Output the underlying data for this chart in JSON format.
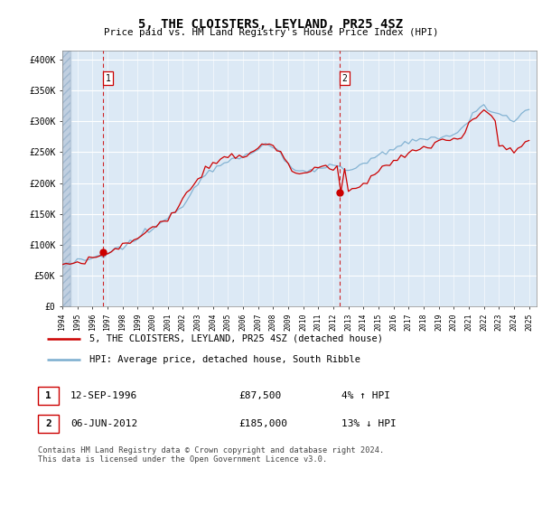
{
  "title": "5, THE CLOISTERS, LEYLAND, PR25 4SZ",
  "subtitle": "Price paid vs. HM Land Registry's House Price Index (HPI)",
  "ylabel_ticks": [
    "£0",
    "£50K",
    "£100K",
    "£150K",
    "£200K",
    "£250K",
    "£300K",
    "£350K",
    "£400K"
  ],
  "ytick_values": [
    0,
    50000,
    100000,
    150000,
    200000,
    250000,
    300000,
    350000,
    400000
  ],
  "ylim": [
    0,
    415000
  ],
  "xlim_start": 1994.0,
  "xlim_end": 2025.5,
  "sale1_date": 1996.71,
  "sale1_price": 87500,
  "sale2_date": 2012.42,
  "sale2_price": 185000,
  "red_line_color": "#cc0000",
  "blue_line_color": "#7aadcf",
  "dashed_color": "#cc0000",
  "sale_dot_color": "#cc0000",
  "legend_label_red": "5, THE CLOISTERS, LEYLAND, PR25 4SZ (detached house)",
  "legend_label_blue": "HPI: Average price, detached house, South Ribble",
  "table_row1": [
    "1",
    "12-SEP-1996",
    "£87,500",
    "4% ↑ HPI"
  ],
  "table_row2": [
    "2",
    "06-JUN-2012",
    "£185,000",
    "13% ↓ HPI"
  ],
  "footnote": "Contains HM Land Registry data © Crown copyright and database right 2024.\nThis data is licensed under the Open Government Licence v3.0.",
  "plot_bg_color": "#dce9f5",
  "hatch_color": "#c0cfe0",
  "years_hpi": [
    1994.0,
    1994.25,
    1994.5,
    1994.75,
    1995.0,
    1995.25,
    1995.5,
    1995.75,
    1996.0,
    1996.25,
    1996.5,
    1996.75,
    1997.0,
    1997.25,
    1997.5,
    1997.75,
    1998.0,
    1998.25,
    1998.5,
    1998.75,
    1999.0,
    1999.25,
    1999.5,
    1999.75,
    2000.0,
    2000.25,
    2000.5,
    2000.75,
    2001.0,
    2001.25,
    2001.5,
    2001.75,
    2002.0,
    2002.25,
    2002.5,
    2002.75,
    2003.0,
    2003.25,
    2003.5,
    2003.75,
    2004.0,
    2004.25,
    2004.5,
    2004.75,
    2005.0,
    2005.25,
    2005.5,
    2005.75,
    2006.0,
    2006.25,
    2006.5,
    2006.75,
    2007.0,
    2007.25,
    2007.5,
    2007.75,
    2008.0,
    2008.25,
    2008.5,
    2008.75,
    2009.0,
    2009.25,
    2009.5,
    2009.75,
    2010.0,
    2010.25,
    2010.5,
    2010.75,
    2011.0,
    2011.25,
    2011.5,
    2011.75,
    2012.0,
    2012.25,
    2012.5,
    2012.75,
    2013.0,
    2013.25,
    2013.5,
    2013.75,
    2014.0,
    2014.25,
    2014.5,
    2014.75,
    2015.0,
    2015.25,
    2015.5,
    2015.75,
    2016.0,
    2016.25,
    2016.5,
    2016.75,
    2017.0,
    2017.25,
    2017.5,
    2017.75,
    2018.0,
    2018.25,
    2018.5,
    2018.75,
    2019.0,
    2019.25,
    2019.5,
    2019.75,
    2020.0,
    2020.25,
    2020.5,
    2020.75,
    2021.0,
    2021.25,
    2021.5,
    2021.75,
    2022.0,
    2022.25,
    2022.5,
    2022.75,
    2023.0,
    2023.25,
    2023.5,
    2023.75,
    2024.0,
    2024.25,
    2024.5,
    2024.75,
    2025.0
  ],
  "hpi_base": [
    68000,
    69000,
    70000,
    71000,
    72000,
    73000,
    74000,
    75000,
    76000,
    78000,
    80000,
    82000,
    85000,
    88000,
    91000,
    94000,
    97000,
    100000,
    103000,
    106000,
    110000,
    114000,
    118000,
    122000,
    126000,
    130000,
    134000,
    138000,
    142000,
    148000,
    154000,
    160000,
    167000,
    175000,
    183000,
    191000,
    200000,
    208000,
    215000,
    220000,
    224000,
    228000,
    232000,
    235000,
    237000,
    239000,
    240000,
    241000,
    242000,
    244000,
    247000,
    250000,
    254000,
    258000,
    261000,
    263000,
    261000,
    255000,
    247000,
    238000,
    230000,
    224000,
    220000,
    218000,
    218000,
    220000,
    222000,
    224000,
    226000,
    227000,
    228000,
    228000,
    227000,
    226000,
    224000,
    222000,
    222000,
    224000,
    226000,
    229000,
    232000,
    235000,
    238000,
    240000,
    243000,
    246000,
    249000,
    252000,
    254000,
    257000,
    260000,
    262000,
    264000,
    266000,
    268000,
    270000,
    271000,
    272000,
    273000,
    274000,
    275000,
    276000,
    277000,
    278000,
    280000,
    282000,
    286000,
    292000,
    300000,
    310000,
    318000,
    322000,
    325000,
    322000,
    318000,
    315000,
    312000,
    310000,
    308000,
    306000,
    305000,
    308000,
    312000,
    316000,
    320000
  ],
  "red_base": [
    68000,
    69000,
    70000,
    71000,
    72000,
    73000,
    74000,
    75000,
    76000,
    78000,
    80000,
    82500,
    86000,
    89000,
    92000,
    95000,
    98000,
    101000,
    104000,
    107000,
    111000,
    115000,
    119000,
    123000,
    127000,
    131000,
    135000,
    139000,
    143000,
    150000,
    157000,
    164000,
    172000,
    181000,
    190000,
    199000,
    207000,
    215000,
    221000,
    226000,
    229000,
    232000,
    235000,
    237000,
    239000,
    241000,
    242000,
    243000,
    244000,
    247000,
    251000,
    255000,
    259000,
    262000,
    264000,
    265000,
    262000,
    255000,
    246000,
    236000,
    228000,
    222000,
    218000,
    216000,
    217000,
    219000,
    221000,
    223000,
    224000,
    225000,
    226000,
    226000,
    225000,
    224000,
    222000,
    220000,
    188000,
    190000,
    193000,
    197000,
    202000,
    207000,
    212000,
    216000,
    219000,
    223000,
    227000,
    230000,
    233000,
    237000,
    241000,
    244000,
    247000,
    250000,
    253000,
    256000,
    258000,
    260000,
    262000,
    264000,
    266000,
    268000,
    269000,
    270000,
    272000,
    274000,
    278000,
    285000,
    294000,
    305000,
    313000,
    316000,
    318000,
    314000,
    309000,
    305000,
    260000,
    258000,
    256000,
    254000,
    252000,
    255000,
    260000,
    265000,
    270000
  ]
}
